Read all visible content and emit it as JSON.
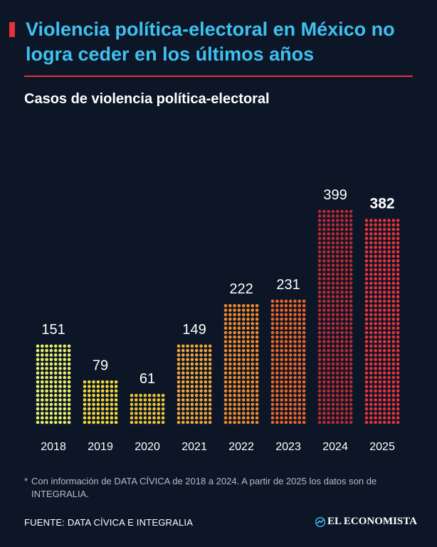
{
  "header": {
    "title": "Violencia política-electoral en México no logra ceder en los últimos años",
    "accent_color": "#e5323b",
    "title_color": "#3fc1f0"
  },
  "chart_data": {
    "type": "bar",
    "style": "dot-matrix",
    "title": "Casos de violencia política-electoral",
    "categories": [
      "2018",
      "2019",
      "2020",
      "2021",
      "2022",
      "2023",
      "2024",
      "2025"
    ],
    "values": [
      151,
      79,
      61,
      149,
      222,
      231,
      399,
      382
    ],
    "highlighted_category": "2025",
    "colors": [
      "#e8ef6c",
      "#f1d73d",
      "#ecc23a",
      "#f0a63b",
      "#ef8a2d",
      "#e9652a",
      "#b72a34",
      "#e5323b"
    ],
    "grid": false,
    "legend": "none"
  },
  "footnote": {
    "marker": "*",
    "text": "Con información de DATA CÍVICA de 2018 a 2024. A partir de 2025 los datos son de INTEGRALIA."
  },
  "source": "FUENTE: DATA CÍVICA E INTEGRALIA",
  "brand": {
    "name": "EL ECONOMISTA",
    "icon": "el-economista-logo-icon"
  }
}
